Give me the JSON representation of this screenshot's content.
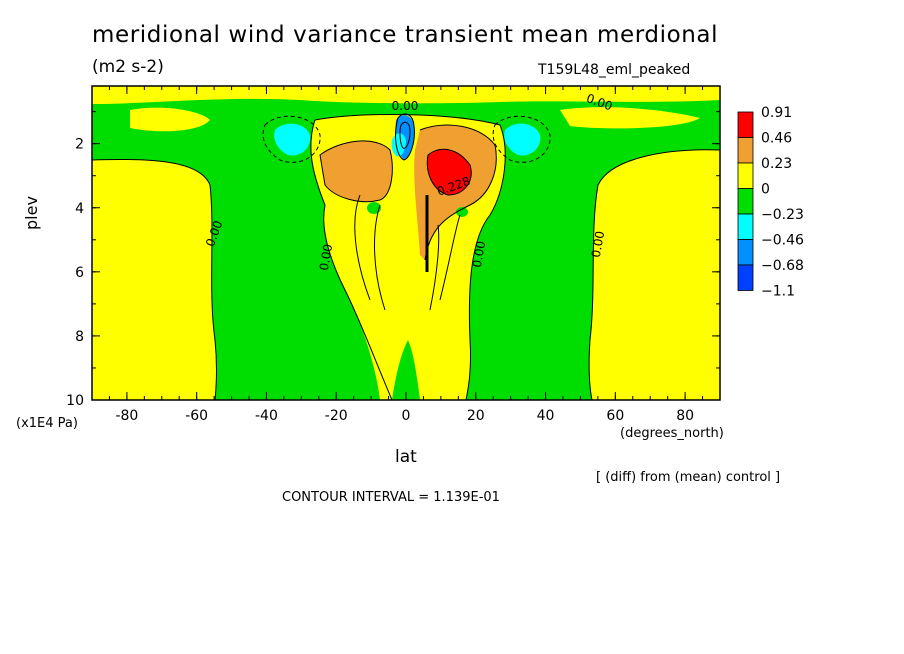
{
  "chart_data": {
    "type": "heatmap",
    "title": "meridional wind variance transient mean merdional",
    "units": "(m2 s-2)",
    "run_label": "T159L48_eml_peaked",
    "xlabel": "lat",
    "x_units": "(degrees_north)",
    "ylabel": "plev",
    "y_units": "(x1E4 Pa)",
    "xlim": [
      -90,
      90
    ],
    "ylim": [
      10,
      0.2
    ],
    "x_ticks": [
      "-80",
      "-60",
      "-40",
      "-20",
      "0",
      "20",
      "40",
      "60",
      "80"
    ],
    "x_tick_values": [
      -80,
      -60,
      -40,
      -20,
      0,
      20,
      40,
      60,
      80
    ],
    "y_ticks": [
      "2",
      "4",
      "6",
      "8",
      "10"
    ],
    "y_tick_values": [
      2,
      4,
      6,
      8,
      10
    ],
    "contour_labels": [
      "0.00",
      "0.00",
      "0.00",
      "0.00",
      "0.00",
      "0.00",
      "0.228"
    ],
    "colorbar": {
      "labels": [
        "0.91",
        "0.46",
        "0.23",
        "0",
        "−0.23",
        "−0.46",
        "−0.68",
        "−1.1"
      ],
      "colors": [
        "#ff0000",
        "#f0a030",
        "#ffff00",
        "#00dd00",
        "#00ffff",
        "#0090ff",
        "#0040ff"
      ]
    },
    "footer_diff": "[ (diff) from (mean) control ]",
    "contour_interval": "CONTOUR INTERVAL = 1.139E-01",
    "regions": [
      {
        "level": "positive_low",
        "color": "#ffff00",
        "desc": "polar bands"
      },
      {
        "level": "negative_low",
        "color": "#00dd00",
        "desc": "midlatitudes"
      },
      {
        "level": "positive_mid",
        "color": "#f0a030",
        "desc": "subtropical upper"
      },
      {
        "level": "positive_high",
        "color": "#ff0000",
        "desc": "10N upper max"
      },
      {
        "level": "negative_mid",
        "color": "#00ffff",
        "desc": "35S/35N upper min"
      },
      {
        "level": "negative_high",
        "color": "#0090ff",
        "desc": "equator upper min"
      }
    ]
  }
}
